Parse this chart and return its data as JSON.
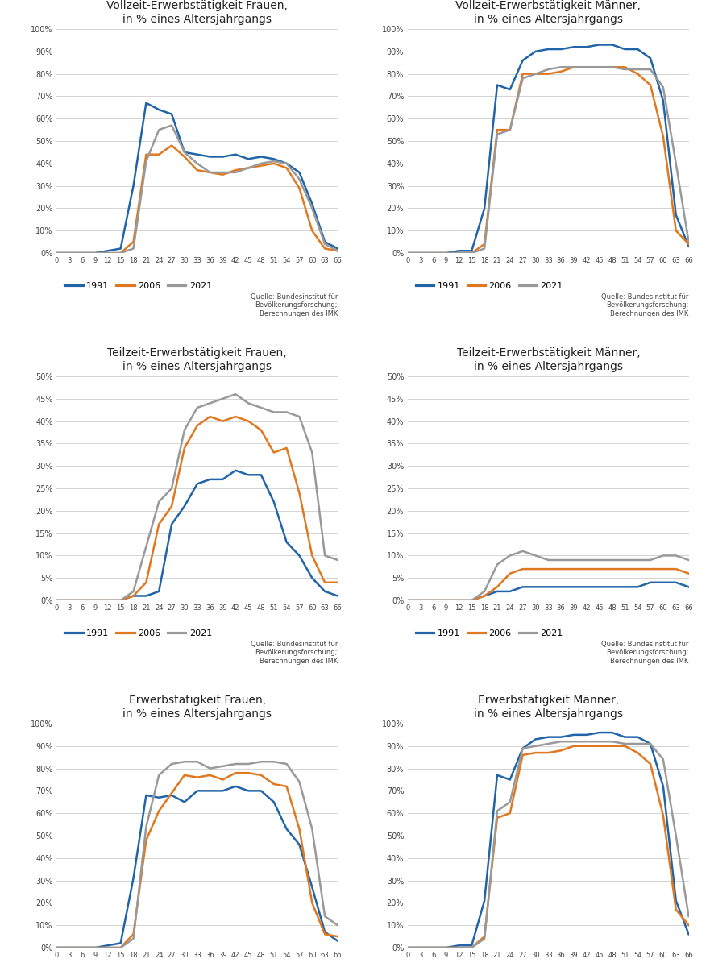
{
  "ages": [
    0,
    3,
    6,
    9,
    12,
    15,
    18,
    21,
    24,
    27,
    30,
    33,
    36,
    39,
    42,
    45,
    48,
    51,
    54,
    57,
    60,
    63,
    66
  ],
  "colors": {
    "1991": "#2165a8",
    "2006": "#e07820",
    "2021": "#999999"
  },
  "line_width": 1.8,
  "source_text": "Quelle: Bundesinstitut für\nBevölkerungsforschung;\nBerechnungen des IMK",
  "vz_frauen": {
    "title": "Vollzeit-Erwerbstätigkeit Frauen,\nin % eines Altersjahrgangs",
    "ylim": [
      0,
      1.0
    ],
    "yticks": [
      0,
      0.1,
      0.2,
      0.3,
      0.4,
      0.5,
      0.6,
      0.7,
      0.8,
      0.9,
      1.0
    ],
    "ytick_labels": [
      "0%",
      "10%",
      "20%",
      "30%",
      "40%",
      "50%",
      "60%",
      "70%",
      "80%",
      "90%",
      "100%"
    ],
    "1991": [
      0,
      0,
      0,
      0,
      0.01,
      0.02,
      0.3,
      0.67,
      0.64,
      0.62,
      0.45,
      0.44,
      0.43,
      0.43,
      0.44,
      0.42,
      0.43,
      0.42,
      0.4,
      0.36,
      0.22,
      0.05,
      0.02
    ],
    "2006": [
      0,
      0,
      0,
      0,
      0,
      0,
      0.05,
      0.44,
      0.44,
      0.48,
      0.43,
      0.37,
      0.36,
      0.35,
      0.37,
      0.38,
      0.39,
      0.4,
      0.38,
      0.29,
      0.1,
      0.02,
      0.01
    ],
    "2021": [
      0,
      0,
      0,
      0,
      0,
      0,
      0.02,
      0.41,
      0.55,
      0.57,
      0.45,
      0.4,
      0.36,
      0.36,
      0.36,
      0.38,
      0.4,
      0.41,
      0.4,
      0.33,
      0.2,
      0.04,
      0.01
    ]
  },
  "vz_maenner": {
    "title": "Vollzeit-Erwerbstätigkeit Männer,\nin % eines Altersjahrgangs",
    "ylim": [
      0,
      1.0
    ],
    "yticks": [
      0,
      0.1,
      0.2,
      0.3,
      0.4,
      0.5,
      0.6,
      0.7,
      0.8,
      0.9,
      1.0
    ],
    "ytick_labels": [
      "0%",
      "10%",
      "20%",
      "30%",
      "40%",
      "50%",
      "60%",
      "70%",
      "80%",
      "90%",
      "100%"
    ],
    "1991": [
      0,
      0,
      0,
      0,
      0.01,
      0.01,
      0.2,
      0.75,
      0.73,
      0.86,
      0.9,
      0.91,
      0.91,
      0.92,
      0.92,
      0.93,
      0.93,
      0.91,
      0.91,
      0.87,
      0.68,
      0.17,
      0.03
    ],
    "2006": [
      0,
      0,
      0,
      0,
      0,
      0,
      0.04,
      0.55,
      0.55,
      0.8,
      0.8,
      0.8,
      0.81,
      0.83,
      0.83,
      0.83,
      0.83,
      0.83,
      0.8,
      0.75,
      0.52,
      0.1,
      0.04
    ],
    "2021": [
      0,
      0,
      0,
      0,
      0,
      0,
      0.02,
      0.53,
      0.55,
      0.78,
      0.8,
      0.82,
      0.83,
      0.83,
      0.83,
      0.83,
      0.83,
      0.82,
      0.82,
      0.82,
      0.74,
      0.4,
      0.05
    ]
  },
  "tz_frauen": {
    "title": "Teilzeit-Erwerbstätigkeit Frauen,\nin % eines Altersjahrgangs",
    "ylim": [
      0,
      0.5
    ],
    "yticks": [
      0,
      0.05,
      0.1,
      0.15,
      0.2,
      0.25,
      0.3,
      0.35,
      0.4,
      0.45,
      0.5
    ],
    "ytick_labels": [
      "0%",
      "5%",
      "10%",
      "15%",
      "20%",
      "25%",
      "30%",
      "35%",
      "40%",
      "45%",
      "50%"
    ],
    "1991": [
      0,
      0,
      0,
      0,
      0,
      0,
      0.01,
      0.01,
      0.02,
      0.17,
      0.21,
      0.26,
      0.27,
      0.27,
      0.29,
      0.28,
      0.28,
      0.22,
      0.13,
      0.1,
      0.05,
      0.02,
      0.01
    ],
    "2006": [
      0,
      0,
      0,
      0,
      0,
      0,
      0.01,
      0.04,
      0.17,
      0.21,
      0.34,
      0.39,
      0.41,
      0.4,
      0.41,
      0.4,
      0.38,
      0.33,
      0.34,
      0.24,
      0.1,
      0.04,
      0.04
    ],
    "2021": [
      0,
      0,
      0,
      0,
      0,
      0,
      0.02,
      0.12,
      0.22,
      0.25,
      0.38,
      0.43,
      0.44,
      0.45,
      0.46,
      0.44,
      0.43,
      0.42,
      0.42,
      0.41,
      0.33,
      0.1,
      0.09
    ]
  },
  "tz_maenner": {
    "title": "Teilzeit-Erwerbstätigkeit Männer,\nin % eines Altersjahrgangs",
    "ylim": [
      0,
      0.5
    ],
    "yticks": [
      0,
      0.05,
      0.1,
      0.15,
      0.2,
      0.25,
      0.3,
      0.35,
      0.4,
      0.45,
      0.5
    ],
    "ytick_labels": [
      "0%",
      "5%",
      "10%",
      "15%",
      "20%",
      "25%",
      "30%",
      "35%",
      "40%",
      "45%",
      "50%"
    ],
    "1991": [
      0,
      0,
      0,
      0,
      0,
      0,
      0.01,
      0.02,
      0.02,
      0.03,
      0.03,
      0.03,
      0.03,
      0.03,
      0.03,
      0.03,
      0.03,
      0.03,
      0.03,
      0.04,
      0.04,
      0.04,
      0.03
    ],
    "2006": [
      0,
      0,
      0,
      0,
      0,
      0,
      0.01,
      0.03,
      0.06,
      0.07,
      0.07,
      0.07,
      0.07,
      0.07,
      0.07,
      0.07,
      0.07,
      0.07,
      0.07,
      0.07,
      0.07,
      0.07,
      0.06
    ],
    "2021": [
      0,
      0,
      0,
      0,
      0,
      0,
      0.02,
      0.08,
      0.1,
      0.11,
      0.1,
      0.09,
      0.09,
      0.09,
      0.09,
      0.09,
      0.09,
      0.09,
      0.09,
      0.09,
      0.1,
      0.1,
      0.09
    ]
  },
  "erw_frauen": {
    "title": "Erwerbstätigkeit Frauen,\nin % eines Altersjahrgangs",
    "ylim": [
      0,
      1.0
    ],
    "yticks": [
      0,
      0.1,
      0.2,
      0.3,
      0.4,
      0.5,
      0.6,
      0.7,
      0.8,
      0.9,
      1.0
    ],
    "ytick_labels": [
      "0%",
      "10%",
      "20%",
      "30%",
      "40%",
      "50%",
      "60%",
      "70%",
      "80%",
      "90%",
      "100%"
    ],
    "1991": [
      0,
      0,
      0,
      0,
      0.01,
      0.02,
      0.31,
      0.68,
      0.67,
      0.68,
      0.65,
      0.7,
      0.7,
      0.7,
      0.72,
      0.7,
      0.7,
      0.65,
      0.53,
      0.46,
      0.27,
      0.07,
      0.03
    ],
    "2006": [
      0,
      0,
      0,
      0,
      0,
      0,
      0.06,
      0.48,
      0.61,
      0.69,
      0.77,
      0.76,
      0.77,
      0.75,
      0.78,
      0.78,
      0.77,
      0.73,
      0.72,
      0.53,
      0.2,
      0.06,
      0.05
    ],
    "2021": [
      0,
      0,
      0,
      0,
      0,
      0,
      0.04,
      0.54,
      0.77,
      0.82,
      0.83,
      0.83,
      0.8,
      0.81,
      0.82,
      0.82,
      0.83,
      0.83,
      0.82,
      0.74,
      0.53,
      0.14,
      0.1
    ]
  },
  "erw_maenner": {
    "title": "Erwerbstätigkeit Männer,\nin % eines Altersjahrgangs",
    "ylim": [
      0,
      1.0
    ],
    "yticks": [
      0,
      0.1,
      0.2,
      0.3,
      0.4,
      0.5,
      0.6,
      0.7,
      0.8,
      0.9,
      1.0
    ],
    "ytick_labels": [
      "0%",
      "10%",
      "20%",
      "30%",
      "40%",
      "50%",
      "60%",
      "70%",
      "80%",
      "90%",
      "100%"
    ],
    "1991": [
      0,
      0,
      0,
      0,
      0.01,
      0.01,
      0.21,
      0.77,
      0.75,
      0.89,
      0.93,
      0.94,
      0.94,
      0.95,
      0.95,
      0.96,
      0.96,
      0.94,
      0.94,
      0.91,
      0.72,
      0.21,
      0.06
    ],
    "2006": [
      0,
      0,
      0,
      0,
      0,
      0,
      0.05,
      0.58,
      0.6,
      0.86,
      0.87,
      0.87,
      0.88,
      0.9,
      0.9,
      0.9,
      0.9,
      0.9,
      0.87,
      0.82,
      0.59,
      0.17,
      0.1
    ],
    "2021": [
      0,
      0,
      0,
      0,
      0,
      0,
      0.04,
      0.61,
      0.65,
      0.89,
      0.9,
      0.91,
      0.92,
      0.92,
      0.92,
      0.92,
      0.92,
      0.91,
      0.91,
      0.91,
      0.84,
      0.5,
      0.14
    ]
  },
  "legend_labels": [
    "1991",
    "2006",
    "2021"
  ],
  "background_color": "#ffffff",
  "grid_color": "#cccccc",
  "title_fontsize": 10,
  "tick_fontsize": 7,
  "source_fontsize": 6.0,
  "legend_fontsize": 8
}
